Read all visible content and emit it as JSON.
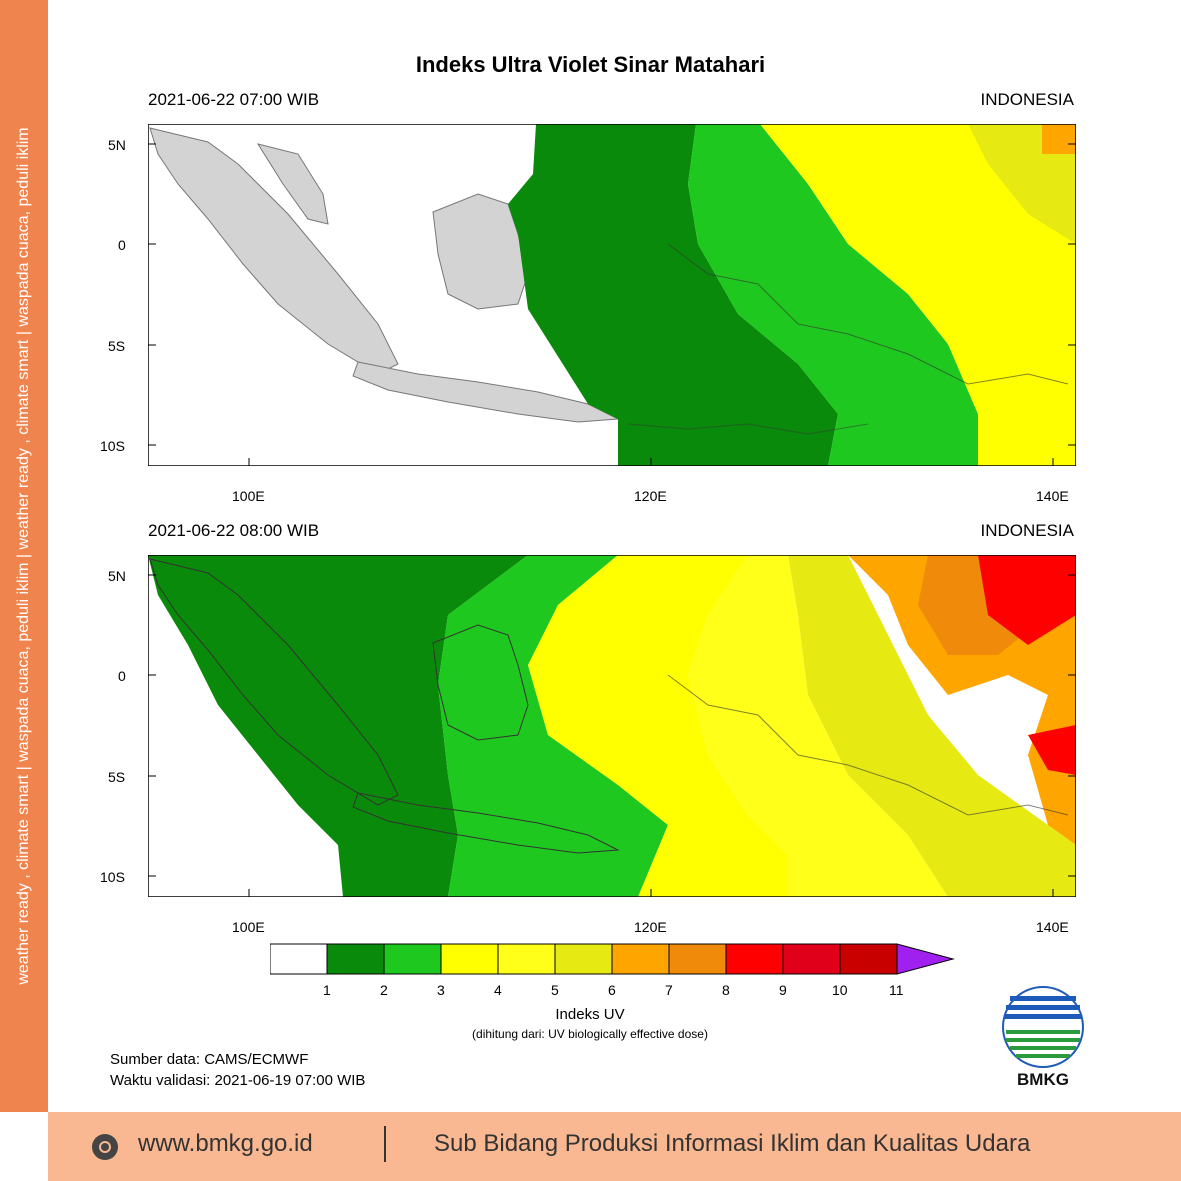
{
  "side_strip": {
    "text": "weather ready , climate smart  |  waspada cuaca, peduli iklim  |  weather ready , climate smart  |  waspada cuaca, peduli iklim"
  },
  "title": "Indeks Ultra Violet Sinar Matahari",
  "panels": [
    {
      "datetime": "2021-06-22  07:00 WIB",
      "region": "INDONESIA"
    },
    {
      "datetime": "2021-06-22  08:00 WIB",
      "region": "INDONESIA"
    }
  ],
  "axes": {
    "lat_ticks": [
      "5N",
      "0",
      "5S",
      "10S"
    ],
    "lon_ticks": [
      "100E",
      "120E",
      "140E"
    ]
  },
  "colorbar": {
    "title": "Indeks UV",
    "subtitle": "(dihitung dari: UV biologically effective dose)",
    "labels": [
      "1",
      "2",
      "3",
      "4",
      "5",
      "6",
      "7",
      "8",
      "9",
      "10",
      "11"
    ],
    "colors": [
      "#ffffff",
      "#0a8a0a",
      "#1fc81f",
      "#ffff00",
      "#ffff1a",
      "#e6ea12",
      "#ffa500",
      "#f08a0a",
      "#ff0000",
      "#e0001a",
      "#c80000",
      "#a020f0"
    ]
  },
  "source": {
    "data": "Sumber data: CAMS/ECMWF",
    "valid": "Waktu validasi: 2021-06-19 07:00 WIB"
  },
  "logo": {
    "text": "BMKG",
    "icon": "bmkg-logo-icon"
  },
  "footer": {
    "url": "www.bmkg.go.id",
    "department": "Sub Bidang Produksi Informasi Iklim dan Kualitas Udara",
    "icon": "globe-icon"
  }
}
